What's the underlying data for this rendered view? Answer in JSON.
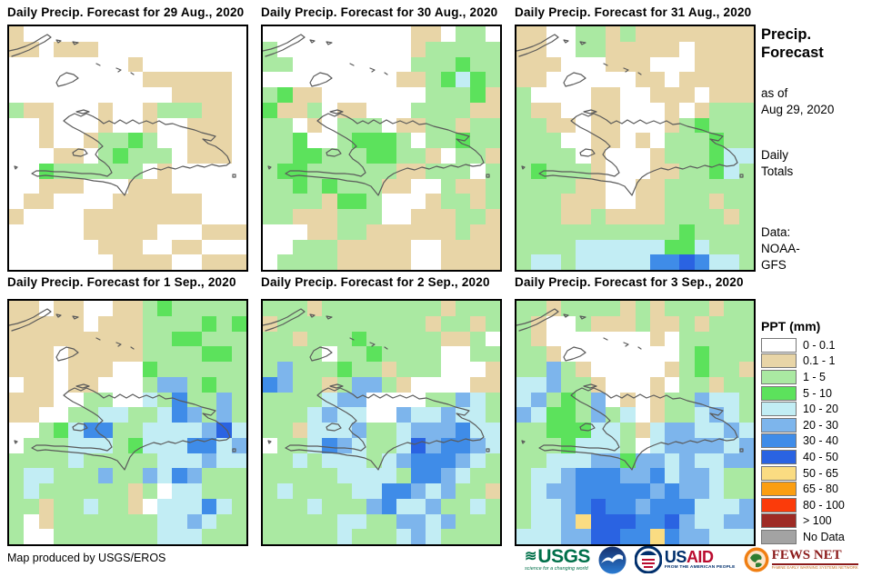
{
  "panels": [
    {
      "title": "Daily Precip. Forecast for 29 Aug., 2020",
      "grid": [
        "TWWWWWWWWWWWWWWW",
        "TTWTTTWWWWWWWWWW",
        "WWWWWWWWTWWWWWWW",
        "WWWWWWWWWTTTTTTW",
        "WWWWWWWWWWWTTTTW",
        "gTTWWWTWWTgggTTW",
        "WWTWWWTWWTWWTTTW",
        "WWTWWTggGgWWTTTW",
        "WWWTTWgGgggWTTTW",
        "WWGggggggWTWWWWW",
        "WWTTTWWWTTTWWWWW",
        "WTTWWWWTTTTTTWWW",
        "TWWWWTTTTTTTTWWW",
        "WWWWWTTTTTWWWTTT",
        "WWWWWWTTTWWTTWWW",
        "WWWWWWWTTTTWWTTT"
      ]
    },
    {
      "title": "Daily Precip. Forecast for 30 Aug., 2020",
      "grid": [
        "WWWWWWWWWWTTWggW",
        "gWWWWWWWWWTggggg",
        "ggWWWWWWWWgggGgg",
        "WWWWWWWWWTTgGcGg",
        "gGTTWWWWWWWgggGT",
        "GTTgWTTWWWggggTT",
        "ggWTWgggWTTggTgg",
        "ggGWWgGGGgWggGgg",
        "ggGGgggGGggTWggT",
        "gGGggggggTTgggWg",
        "ggGgGgggTTWWgTTg",
        "ggggTGGgWWWTggTg",
        "ggTTTgggWWTTTggT",
        "WWWTTggTTTTTTgTT",
        "WWgggTTTTTWWTTTT",
        "WggggTTTTTWWTTTT"
      ]
    },
    {
      "title": "Daily Precip. Forecast for 31 Aug., 2020",
      "grid": [
        "TTWWggTgTTTTTTTT",
        "TTWWggTTTTTWTTTT",
        "TTTWWWTTTWWWTTTT",
        "TTWWWWWWTTWTTTTT",
        "gWWWWTTWWTTTWTTT",
        "gTTWWTTWWWTWTggg",
        "ggTTWTTWWWTgGggg",
        "gggWWTTWTWgggGgg",
        "ggggWTWWWTgggGcc",
        "gGgggTWWWTTggGcg",
        "ggggTTWWTTgggggg",
        "gggTTTWWTTgggTgg",
        "gggTTgTTTTggggTg",
        "gggggggggggGgggg",
        "ggggccccccGGcggg",
        "gccgcccccBBDBccg"
      ]
    },
    {
      "title": "Daily Precip. Forecast for 1 Sep., 2020",
      "grid": [
        "TTWTTWWTTgGggggg",
        "TTTTTWTTTggggGgG",
        "TTTTTTTTTggGGggg",
        "TTTWTTTTTggggGGg",
        "TTTWTTTWWGgggggg",
        "WTTWTTWWWgbbgGgg",
        "TTTWWggWWcgBggbg",
        "TTWWggccggcBbgbg",
        "WWgGcBBggccccbDc",
        "WgggcccgGcccBBcb",
        "ggggcgggggcccbcc",
        "gccgggbggbcBbggg",
        "gcggggggTgWccggg",
        "ggTggcggTWcccBcg",
        "gWTgggggggccbcgg",
        "gWWgggggggcccggg"
      ]
    },
    {
      "title": "Daily Precip. Forecast for 2 Sep., 2020",
      "grid": [
        "gggTggggggggTggg",
        "TggggggggggTggTg",
        "ggTgggGgggggTTgW",
        "ggggWggGggggWWgg",
        "gbgggGggTgggWWWT",
        "BbggTgbbgTWWWWTT",
        "ggggcbbWWWWggbcg",
        "gggcbccWWbccbccg",
        "ggTcccbggcbbbBcc",
        "WggcBbcggcDbBBbc",
        "ggcgcccgcbBBBbcg",
        "gggggccccgBBbcgg",
        "gcggggccBBbcbggT",
        "gggcgggbBccbggcg",
        "gggggccggbbcbggg",
        "gggggcgggcbcgggg"
      ]
    },
    {
      "title": "Daily Precip. Forecast for 3 Sep., 2020",
      "grid": [
        "ggTggggTgTgggTgg",
        "gTWWgTTTgTTgTggg",
        "gTWWWWWWWTWggggg",
        "ggTWWWWWWWWgGggg",
        "ggbgTWWWWWTgGggT",
        "ccbggTWWWTWggTgg",
        "cbgGgbWTWTggbccg",
        "bcGGgbgcWTggcbcg",
        "ggGGGccgTcbbccbc",
        "gggGcccgWcbbbbcb",
        "ggcccbbGbbcbccbb",
        "gccbBBBbbBcbbcgg",
        "gcbbBBBBBbBbbcgg",
        "gccbBDBBbBBBcccb",
        "gccbyDDDBBDbccbb",
        "cccbbDDBByBbbccc"
      ]
    }
  ],
  "palette": {
    "W": "#FFFFFF",
    "T": "#E8D5A7",
    "g": "#AAE9A2",
    "G": "#5CE25C",
    "c": "#C2EDF4",
    "b": "#7DB5EC",
    "B": "#3F8CE8",
    "D": "#2A63E2",
    "y": "#FADC82",
    "o": "#FB9E12",
    "r": "#FB3B0A",
    "m": "#9E2B25",
    "N": "#A3A3A3"
  },
  "sidebar": {
    "title_line1": "Precip.",
    "title_line2": "Forecast",
    "asof_line1": "as of",
    "asof_line2": "Aug 29, 2020",
    "totals_line1": "Daily",
    "totals_line2": "Totals",
    "data_line1": "Data:",
    "data_line2": "NOAA-",
    "data_line3": "GFS",
    "legend_title": "PPT (mm)",
    "legend_items": [
      {
        "label": "0 - 0.1",
        "key": "W"
      },
      {
        "label": "0.1 - 1",
        "key": "T"
      },
      {
        "label": "1 - 5",
        "key": "g"
      },
      {
        "label": "5 - 10",
        "key": "G"
      },
      {
        "label": "10 - 20",
        "key": "c"
      },
      {
        "label": "20 - 30",
        "key": "b"
      },
      {
        "label": "30 - 40",
        "key": "B"
      },
      {
        "label": "40 - 50",
        "key": "D"
      },
      {
        "label": "50 - 65",
        "key": "y"
      },
      {
        "label": "65 - 80",
        "key": "o"
      },
      {
        "label": "80 - 100",
        "key": "r"
      },
      {
        "label": "> 100",
        "key": "m"
      },
      {
        "label": "No Data",
        "key": "N"
      }
    ]
  },
  "footer": {
    "credit": "Map produced by USGS/EROS",
    "usgs_name": "USGS",
    "usgs_tagline": "science for a changing world",
    "usaid_us": "US",
    "usaid_aid": "AID",
    "usaid_tagline": "FROM THE AMERICAN PEOPLE",
    "fews_name": "FEWS NET",
    "fews_tagline": "FAMINE EARLY WARNING SYSTEMS NETWORK"
  }
}
